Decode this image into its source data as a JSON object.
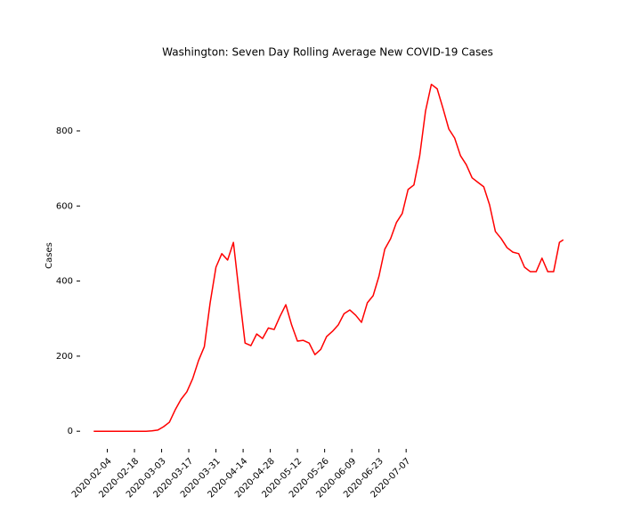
{
  "chart_data": {
    "type": "line",
    "title": "Washington: Seven Day Rolling Average New COVID-19 Cases",
    "ylabel": "Cases",
    "x": [
      "2020-01-28",
      "2020-01-31",
      "2020-02-03",
      "2020-02-06",
      "2020-02-09",
      "2020-02-12",
      "2020-02-15",
      "2020-02-18",
      "2020-02-21",
      "2020-02-24",
      "2020-02-27",
      "2020-03-01",
      "2020-03-04",
      "2020-03-07",
      "2020-03-10",
      "2020-03-13",
      "2020-03-16",
      "2020-03-19",
      "2020-03-22",
      "2020-03-25",
      "2020-03-28",
      "2020-03-31",
      "2020-04-03",
      "2020-04-06",
      "2020-04-09",
      "2020-04-12",
      "2020-04-15",
      "2020-04-18",
      "2020-04-21",
      "2020-04-24",
      "2020-04-27",
      "2020-04-30",
      "2020-05-03",
      "2020-05-06",
      "2020-05-09",
      "2020-05-12",
      "2020-05-15",
      "2020-05-18",
      "2020-05-21",
      "2020-05-24",
      "2020-05-27",
      "2020-05-30",
      "2020-06-02",
      "2020-06-05",
      "2020-06-08",
      "2020-06-11",
      "2020-06-14",
      "2020-06-17",
      "2020-06-20",
      "2020-06-23",
      "2020-06-26",
      "2020-06-29",
      "2020-07-02",
      "2020-07-05",
      "2020-07-08",
      "2020-07-11",
      "2020-07-14",
      "2020-07-17",
      "2020-07-20",
      "2020-07-23",
      "2020-07-26",
      "2020-07-29",
      "2020-08-01",
      "2020-08-04",
      "2020-08-07",
      "2020-08-10",
      "2020-08-13",
      "2020-08-16",
      "2020-08-19",
      "2020-08-22",
      "2020-08-25",
      "2020-08-28",
      "2020-08-31",
      "2020-09-03",
      "2020-09-06",
      "2020-09-09",
      "2020-09-12",
      "2020-09-15",
      "2020-09-18",
      "2020-09-21",
      "2020-09-24",
      "2020-09-26"
    ],
    "series": [
      {
        "name": "Cases",
        "color": "#ff0000",
        "values": [
          0,
          0,
          0,
          0,
          0,
          0,
          0,
          0,
          0,
          0,
          1,
          3,
          12,
          24,
          57,
          85,
          105,
          140,
          188,
          225,
          342,
          437,
          473,
          456,
          503,
          366,
          235,
          228,
          259,
          247,
          275,
          271,
          306,
          337,
          283,
          240,
          242,
          235,
          204,
          218,
          252,
          266,
          283,
          313,
          323,
          309,
          290,
          342,
          361,
          413,
          485,
          513,
          556,
          580,
          644,
          656,
          734,
          853,
          924,
          912,
          860,
          805,
          781,
          734,
          710,
          675,
          663,
          651,
          603,
          532,
          513,
          489,
          477,
          473,
          437,
          425,
          425,
          461,
          425,
          425,
          503,
          510
        ]
      }
    ],
    "xlim": [
      "2020-01-21",
      "2020-10-03"
    ],
    "xticks": [
      "2020-02-04",
      "2020-02-18",
      "2020-03-03",
      "2020-03-17",
      "2020-03-31",
      "2020-04-14",
      "2020-04-28",
      "2020-05-12",
      "2020-05-26",
      "2020-06-09",
      "2020-06-23",
      "2020-07-07"
    ],
    "ylim": [
      -47,
      985
    ],
    "yticks": [
      0,
      200,
      400,
      600,
      800
    ],
    "grid": false
  }
}
